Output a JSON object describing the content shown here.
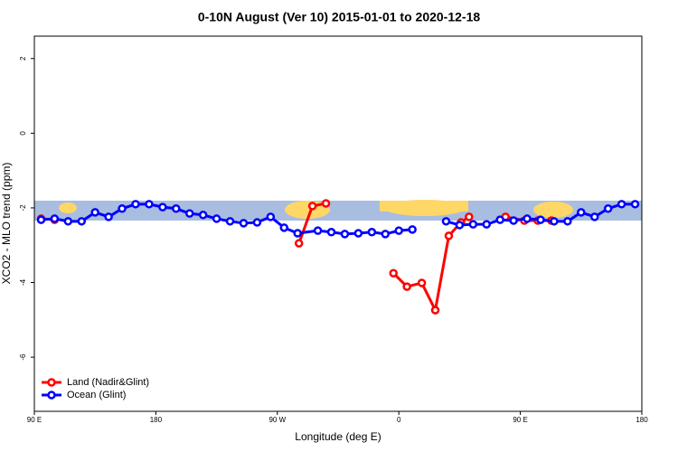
{
  "chart_data": {
    "type": "line",
    "title": "0-10N August (Ver 10)   2015-01-01 to 2020-12-18",
    "xlabel": "Longitude (deg E)",
    "ylabel": "XCO2 - MLO trend (ppm)",
    "xlim": [
      90,
      540
    ],
    "xticks": [
      {
        "value": 90,
        "label": "90 E"
      },
      {
        "value": 180,
        "label": "180"
      },
      {
        "value": 270,
        "label": "90 W"
      },
      {
        "value": 360,
        "label": "0"
      },
      {
        "value": 450,
        "label": "90 E"
      },
      {
        "value": 540,
        "label": "180"
      }
    ],
    "ylim": [
      -7.45,
      2.6
    ],
    "yticks": [
      2,
      0,
      -2,
      -4,
      -6
    ],
    "legend": "bottom-left",
    "series": [
      {
        "name": "Land (Nadir&Glint)",
        "color": "#ff0000",
        "x": [
          95,
          105,
          200,
          286,
          296,
          306,
          330,
          356,
          366,
          377,
          387,
          397,
          406,
          412,
          425,
          439,
          453,
          463,
          473
        ],
        "values": [
          -2.29,
          -2.32,
          null,
          -2.95,
          -1.95,
          -1.88,
          null,
          -3.75,
          -4.11,
          -4.01,
          -4.74,
          -2.75,
          -2.39,
          -2.24,
          null,
          -2.24,
          -2.34,
          -2.34,
          -2.34
        ]
      },
      {
        "name": "Ocean (Glint)",
        "color": "#0000ff",
        "x": [
          95,
          105,
          115,
          125,
          135,
          145,
          155,
          165,
          175,
          185,
          195,
          205,
          215,
          225,
          235,
          245,
          255,
          265,
          275,
          285,
          300,
          310,
          320,
          330,
          340,
          350,
          360,
          370,
          385,
          395,
          405,
          415,
          425,
          435,
          445,
          455,
          465,
          475,
          485,
          495,
          505,
          515,
          525,
          535
        ],
        "values": [
          -2.32,
          -2.29,
          -2.36,
          -2.36,
          -2.12,
          -2.24,
          -2.02,
          -1.9,
          -1.9,
          -1.98,
          -2.02,
          -2.15,
          -2.19,
          -2.29,
          -2.36,
          -2.41,
          -2.39,
          -2.24,
          -2.53,
          -2.68,
          -2.61,
          -2.65,
          -2.7,
          -2.68,
          -2.65,
          -2.7,
          -2.61,
          -2.58,
          null,
          -2.36,
          -2.46,
          -2.44,
          -2.44,
          -2.32,
          -2.34,
          -2.29,
          -2.32,
          -2.36,
          -2.36,
          -2.12,
          -2.24,
          -2.02,
          -1.9,
          -1.9
        ]
      }
    ]
  }
}
